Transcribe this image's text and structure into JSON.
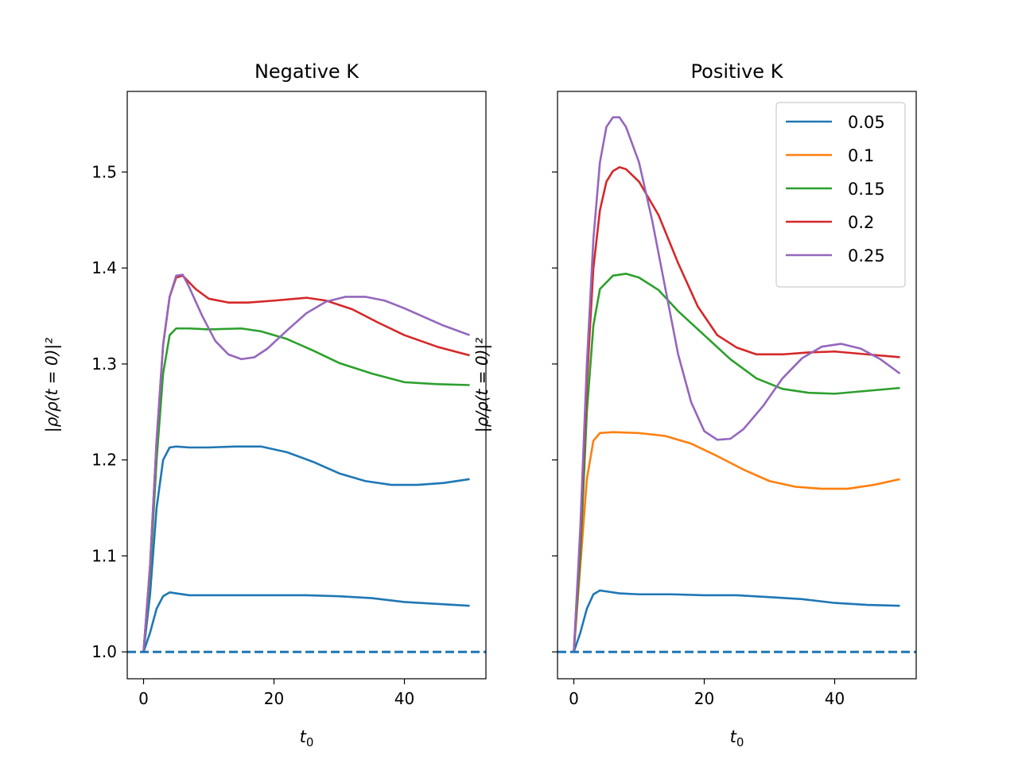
{
  "chart_data": [
    {
      "type": "line",
      "title": "Negative K",
      "xlabel": "t",
      "xlabel_sub": "0",
      "ylabel": "|ρ/ρ(t = 0)|²",
      "xlim": [
        -2.5,
        52.5
      ],
      "ylim": [
        0.972,
        1.584
      ],
      "xticks": [
        0,
        20,
        40
      ],
      "yticks": [
        1.0,
        1.1,
        1.2,
        1.3,
        1.4,
        1.5
      ],
      "ytick_labels_shown": true,
      "reference_line": {
        "y": 1.0,
        "style": "dashed",
        "color": "#1f77b4"
      },
      "series": [
        {
          "name": "0.05",
          "color": "#1f77b4",
          "points": [
            [
              0,
              1.0
            ],
            [
              1,
              1.02
            ],
            [
              2,
              1.045
            ],
            [
              3,
              1.058
            ],
            [
              4,
              1.062
            ],
            [
              5,
              1.061
            ],
            [
              7,
              1.059
            ],
            [
              10,
              1.059
            ],
            [
              15,
              1.059
            ],
            [
              20,
              1.059
            ],
            [
              25,
              1.059
            ],
            [
              30,
              1.058
            ],
            [
              35,
              1.056
            ],
            [
              40,
              1.052
            ],
            [
              45,
              1.05
            ],
            [
              50,
              1.048
            ]
          ]
        },
        {
          "name": "0.1",
          "color": "#1f77b4",
          "points": [
            [
              0,
              1.0
            ],
            [
              1,
              1.06
            ],
            [
              2,
              1.15
            ],
            [
              3,
              1.2
            ],
            [
              4,
              1.213
            ],
            [
              5,
              1.214
            ],
            [
              7,
              1.213
            ],
            [
              10,
              1.213
            ],
            [
              14,
              1.214
            ],
            [
              18,
              1.214
            ],
            [
              22,
              1.208
            ],
            [
              26,
              1.198
            ],
            [
              30,
              1.186
            ],
            [
              34,
              1.178
            ],
            [
              38,
              1.174
            ],
            [
              42,
              1.174
            ],
            [
              46,
              1.176
            ],
            [
              50,
              1.18
            ]
          ]
        },
        {
          "name": "0.15",
          "color": "#2ca02c",
          "points": [
            [
              0,
              1.0
            ],
            [
              1,
              1.08
            ],
            [
              2,
              1.2
            ],
            [
              3,
              1.29
            ],
            [
              4,
              1.33
            ],
            [
              5,
              1.337
            ],
            [
              7,
              1.337
            ],
            [
              10,
              1.336
            ],
            [
              15,
              1.337
            ],
            [
              18,
              1.334
            ],
            [
              22,
              1.326
            ],
            [
              26,
              1.314
            ],
            [
              30,
              1.301
            ],
            [
              35,
              1.29
            ],
            [
              40,
              1.281
            ],
            [
              45,
              1.279
            ],
            [
              50,
              1.278
            ]
          ]
        },
        {
          "name": "0.2",
          "color": "#d62728",
          "points": [
            [
              0,
              1.0
            ],
            [
              1,
              1.09
            ],
            [
              2,
              1.22
            ],
            [
              3,
              1.32
            ],
            [
              4,
              1.37
            ],
            [
              5,
              1.39
            ],
            [
              6,
              1.392
            ],
            [
              8,
              1.378
            ],
            [
              10,
              1.368
            ],
            [
              13,
              1.364
            ],
            [
              16,
              1.364
            ],
            [
              20,
              1.366
            ],
            [
              25,
              1.369
            ],
            [
              28,
              1.366
            ],
            [
              32,
              1.357
            ],
            [
              36,
              1.343
            ],
            [
              40,
              1.33
            ],
            [
              45,
              1.318
            ],
            [
              50,
              1.309
            ]
          ]
        },
        {
          "name": "0.25",
          "color": "#9467bd",
          "points": [
            [
              0,
              1.0
            ],
            [
              1,
              1.09
            ],
            [
              2,
              1.22
            ],
            [
              3,
              1.32
            ],
            [
              4,
              1.37
            ],
            [
              5,
              1.392
            ],
            [
              6,
              1.393
            ],
            [
              7,
              1.38
            ],
            [
              9,
              1.35
            ],
            [
              11,
              1.324
            ],
            [
              13,
              1.31
            ],
            [
              15,
              1.305
            ],
            [
              17,
              1.307
            ],
            [
              19,
              1.316
            ],
            [
              22,
              1.335
            ],
            [
              25,
              1.353
            ],
            [
              28,
              1.365
            ],
            [
              31,
              1.37
            ],
            [
              34,
              1.37
            ],
            [
              37,
              1.366
            ],
            [
              40,
              1.358
            ],
            [
              43,
              1.349
            ],
            [
              46,
              1.34
            ],
            [
              50,
              1.33
            ]
          ]
        }
      ]
    },
    {
      "type": "line",
      "title": "Positive K",
      "xlabel": "t",
      "xlabel_sub": "0",
      "ylabel": "|ρ/ρ(t = 0)|²",
      "xlim": [
        -2.5,
        52.5
      ],
      "ylim": [
        0.972,
        1.584
      ],
      "xticks": [
        0,
        20,
        40
      ],
      "yticks": [
        1.0,
        1.1,
        1.2,
        1.3,
        1.4,
        1.5
      ],
      "ytick_labels_shown": false,
      "reference_line": {
        "y": 1.0,
        "style": "dashed",
        "color": "#1f77b4"
      },
      "legend": {
        "position": "upper right",
        "entries": [
          "0.05",
          "0.1",
          "0.15",
          "0.2",
          "0.25"
        ]
      },
      "series": [
        {
          "name": "0.05",
          "color": "#1f77b4",
          "points": [
            [
              0,
              1.0
            ],
            [
              1,
              1.02
            ],
            [
              2,
              1.045
            ],
            [
              3,
              1.06
            ],
            [
              4,
              1.064
            ],
            [
              5,
              1.063
            ],
            [
              7,
              1.061
            ],
            [
              10,
              1.06
            ],
            [
              15,
              1.06
            ],
            [
              20,
              1.059
            ],
            [
              25,
              1.059
            ],
            [
              30,
              1.057
            ],
            [
              35,
              1.055
            ],
            [
              40,
              1.051
            ],
            [
              45,
              1.049
            ],
            [
              50,
              1.048
            ]
          ]
        },
        {
          "name": "0.1",
          "color": "#ff7f0e",
          "points": [
            [
              0,
              1.0
            ],
            [
              1,
              1.09
            ],
            [
              2,
              1.18
            ],
            [
              3,
              1.22
            ],
            [
              4,
              1.228
            ],
            [
              6,
              1.229
            ],
            [
              10,
              1.228
            ],
            [
              14,
              1.225
            ],
            [
              18,
              1.217
            ],
            [
              22,
              1.204
            ],
            [
              26,
              1.19
            ],
            [
              30,
              1.178
            ],
            [
              34,
              1.172
            ],
            [
              38,
              1.17
            ],
            [
              42,
              1.17
            ],
            [
              46,
              1.174
            ],
            [
              50,
              1.18
            ]
          ]
        },
        {
          "name": "0.15",
          "color": "#2ca02c",
          "points": [
            [
              0,
              1.0
            ],
            [
              1,
              1.1
            ],
            [
              2,
              1.25
            ],
            [
              3,
              1.34
            ],
            [
              4,
              1.378
            ],
            [
              6,
              1.392
            ],
            [
              8,
              1.394
            ],
            [
              10,
              1.39
            ],
            [
              13,
              1.377
            ],
            [
              16,
              1.355
            ],
            [
              20,
              1.33
            ],
            [
              24,
              1.305
            ],
            [
              28,
              1.285
            ],
            [
              32,
              1.274
            ],
            [
              36,
              1.27
            ],
            [
              40,
              1.269
            ],
            [
              45,
              1.272
            ],
            [
              50,
              1.275
            ]
          ]
        },
        {
          "name": "0.2",
          "color": "#d62728",
          "points": [
            [
              0,
              1.0
            ],
            [
              1,
              1.12
            ],
            [
              2,
              1.28
            ],
            [
              3,
              1.4
            ],
            [
              4,
              1.46
            ],
            [
              5,
              1.49
            ],
            [
              6,
              1.501
            ],
            [
              7,
              1.505
            ],
            [
              8,
              1.503
            ],
            [
              10,
              1.49
            ],
            [
              13,
              1.455
            ],
            [
              16,
              1.405
            ],
            [
              19,
              1.36
            ],
            [
              22,
              1.33
            ],
            [
              25,
              1.317
            ],
            [
              28,
              1.31
            ],
            [
              32,
              1.31
            ],
            [
              36,
              1.312
            ],
            [
              40,
              1.313
            ],
            [
              45,
              1.31
            ],
            [
              50,
              1.307
            ]
          ]
        },
        {
          "name": "0.25",
          "color": "#9467bd",
          "points": [
            [
              0,
              1.0
            ],
            [
              1,
              1.13
            ],
            [
              2,
              1.3
            ],
            [
              3,
              1.43
            ],
            [
              4,
              1.51
            ],
            [
              5,
              1.547
            ],
            [
              6,
              1.557
            ],
            [
              7,
              1.557
            ],
            [
              8,
              1.547
            ],
            [
              10,
              1.51
            ],
            [
              12,
              1.45
            ],
            [
              14,
              1.38
            ],
            [
              16,
              1.31
            ],
            [
              18,
              1.26
            ],
            [
              20,
              1.23
            ],
            [
              22,
              1.221
            ],
            [
              24,
              1.222
            ],
            [
              26,
              1.232
            ],
            [
              29,
              1.256
            ],
            [
              32,
              1.285
            ],
            [
              35,
              1.306
            ],
            [
              38,
              1.318
            ],
            [
              41,
              1.321
            ],
            [
              44,
              1.316
            ],
            [
              47,
              1.305
            ],
            [
              50,
              1.29
            ]
          ]
        }
      ]
    }
  ]
}
